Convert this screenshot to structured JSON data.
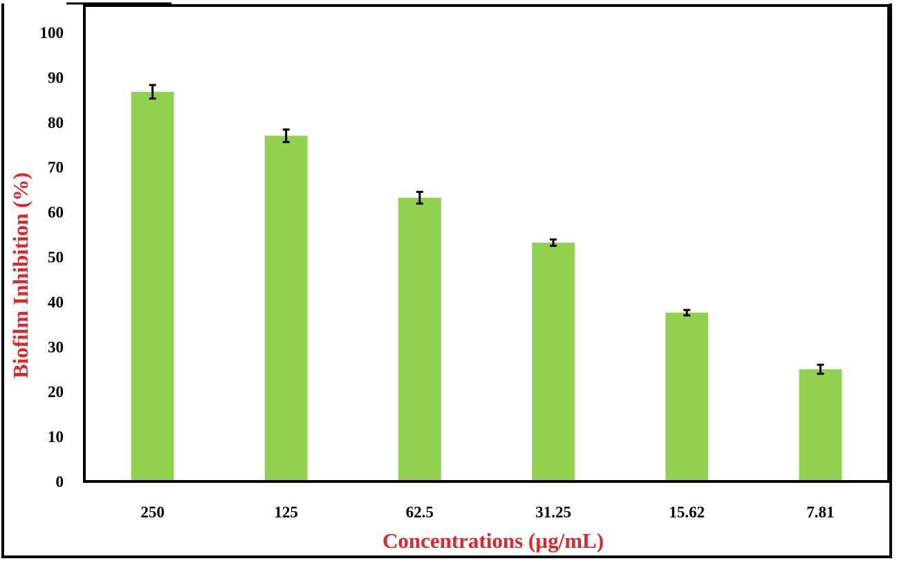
{
  "chart_data": {
    "type": "bar",
    "title": "",
    "xlabel": "Concentrations (µg/mL)",
    "ylabel": "Biofilm Inhibition (%)",
    "categories": [
      "250",
      "125",
      "62.5",
      "31.25",
      "15.62",
      "7.81"
    ],
    "values": [
      86.8,
      77.0,
      63.2,
      53.2,
      37.6,
      25.0
    ],
    "error": [
      1.5,
      1.4,
      1.3,
      0.7,
      0.6,
      1.0
    ],
    "ylim": [
      0,
      100
    ],
    "yticks": [
      "0",
      "10",
      "20",
      "30",
      "40",
      "50",
      "60",
      "70",
      "80",
      "90",
      "100"
    ],
    "grid": false,
    "legend": "none",
    "colors": {
      "bar": "#92d050",
      "label": "#e0252b",
      "axis": "#000000",
      "error_bar": "#000000"
    }
  }
}
